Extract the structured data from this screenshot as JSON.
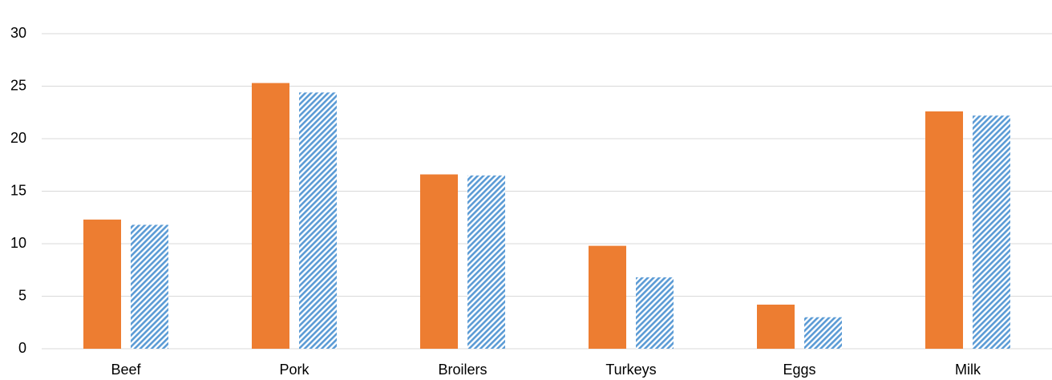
{
  "chart_data": {
    "type": "bar",
    "categories": [
      "Beef",
      "Pork",
      "Broilers",
      "Turkeys",
      "Eggs",
      "Milk"
    ],
    "series": [
      {
        "color": "#ed7d31",
        "values": [
          12.3,
          25.3,
          16.6,
          9.8,
          4.2,
          22.6
        ]
      },
      {
        "color": "#5b9bd5",
        "hatch": true,
        "values": [
          11.8,
          24.4,
          16.5,
          6.8,
          3.0,
          22.2
        ]
      }
    ],
    "ylim": [
      0,
      30
    ],
    "yticks": [
      0,
      5,
      10,
      15,
      20,
      25,
      30
    ],
    "grid": true
  }
}
